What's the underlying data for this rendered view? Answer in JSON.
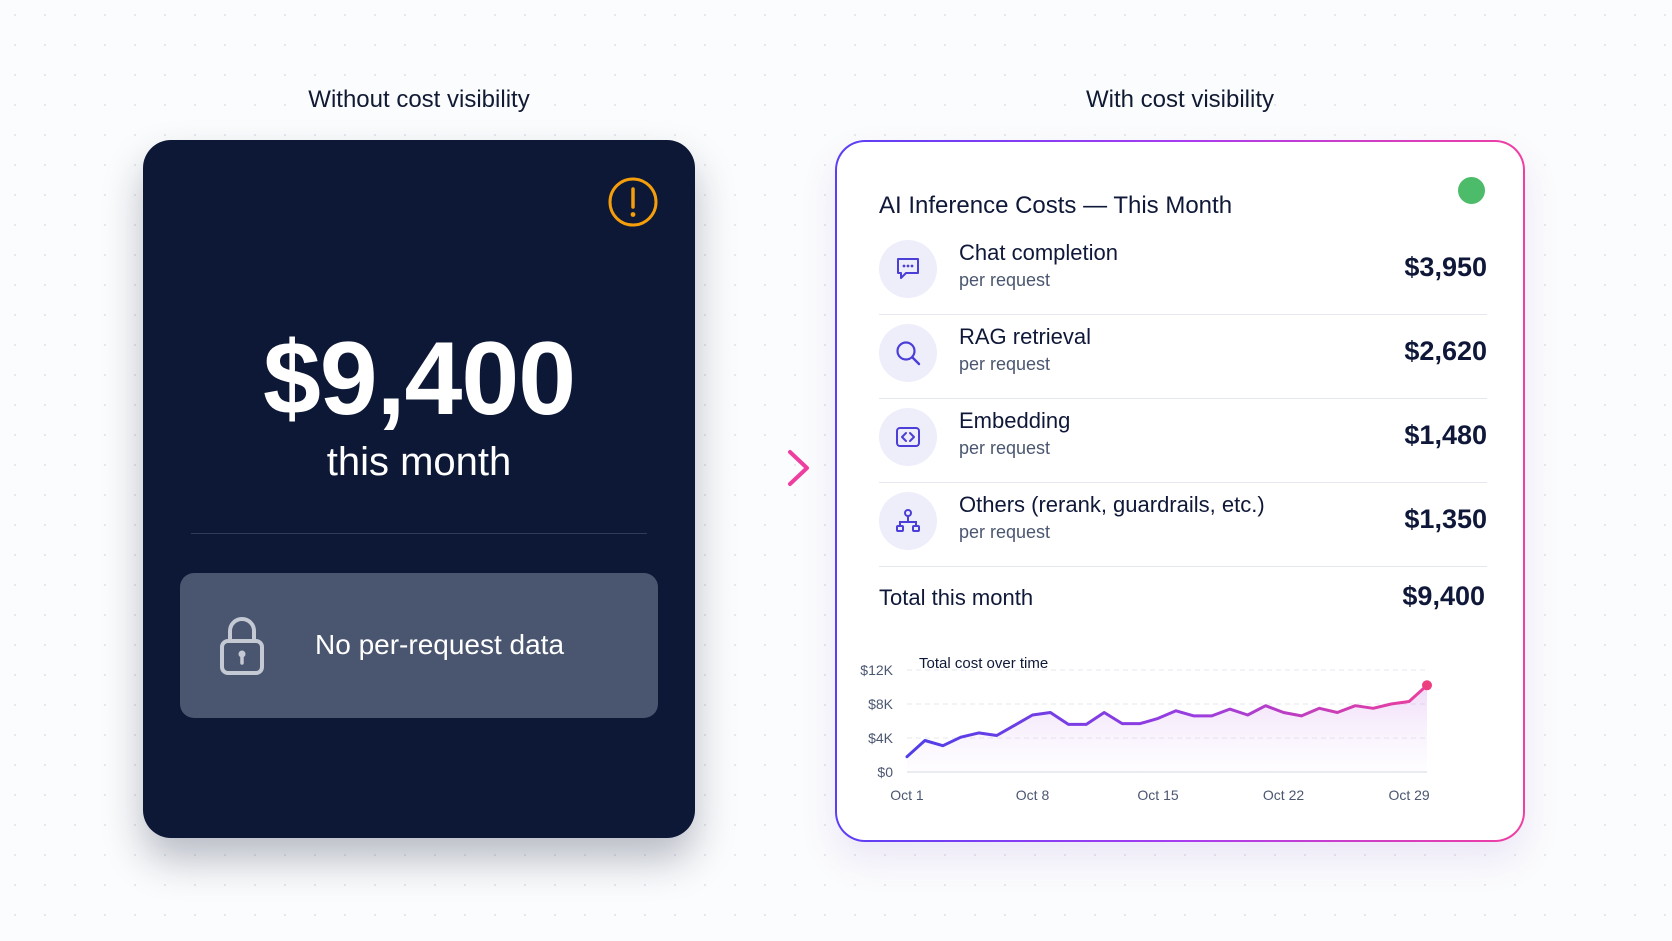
{
  "left_panel": {
    "title": "Without cost visibility",
    "amount": "$9,400",
    "amount_sub": "this month",
    "locked_text": "No per-request data",
    "warning_icon": "exclamation-circle-icon",
    "lock_icon": "padlock-icon",
    "colors": {
      "background": "#0c1836",
      "warning": "#f59e0b",
      "locked_box": "#4a566f"
    }
  },
  "arrow": {
    "icon": "arrow-right-icon"
  },
  "right_panel": {
    "title": "With cost visibility",
    "card_title": "AI Inference Costs — This Month",
    "status_icon": "green-status-dot",
    "rows": [
      {
        "name": "Chat completion",
        "sub": "per request",
        "value": "$3,950",
        "icon": "chat-bubble-icon"
      },
      {
        "name": "RAG retrieval",
        "sub": "per request",
        "value": "$2,620",
        "icon": "search-icon"
      },
      {
        "name": "Embedding",
        "sub": "per request",
        "value": "$1,480",
        "icon": "code-brackets-icon"
      },
      {
        "name": "Others (rerank, guardrails, etc.)",
        "sub": "per request",
        "value": "$1,350",
        "icon": "network-nodes-icon"
      }
    ],
    "total_label": "Total this month",
    "total_value": "$9,400",
    "colors": {
      "border_start": "#5b3ff5",
      "border_end": "#f03fa2",
      "status": "#4cbc6a"
    }
  },
  "chart_data": {
    "type": "area",
    "title": "Total cost over time",
    "xlabel": "",
    "ylabel": "",
    "ylim": [
      0,
      12000
    ],
    "y_ticks": [
      0,
      4000,
      8000,
      12000
    ],
    "y_tick_labels": [
      "$0",
      "$4K",
      "$8K",
      "$12K"
    ],
    "x_ticks": [
      1,
      8,
      15,
      22,
      29
    ],
    "x_tick_labels": [
      "Oct 1",
      "Oct 8",
      "Oct 15",
      "Oct 22",
      "Oct 29"
    ],
    "x": [
      1,
      2,
      3,
      4,
      5,
      6,
      7,
      8,
      9,
      10,
      11,
      12,
      13,
      14,
      15,
      16,
      17,
      18,
      19,
      20,
      21,
      22,
      23,
      24,
      25,
      26,
      27,
      28,
      29,
      30
    ],
    "values": [
      1800,
      3700,
      3100,
      4100,
      4600,
      4300,
      5500,
      6700,
      7000,
      5600,
      5600,
      7000,
      5700,
      5700,
      6300,
      7200,
      6600,
      6600,
      7400,
      6700,
      7800,
      7000,
      6600,
      7500,
      7000,
      7800,
      7500,
      8000,
      8300,
      10200
    ],
    "grid": "horizontal dashed",
    "line_colors": [
      "#4f3ee8",
      "#ec3f9b"
    ]
  }
}
